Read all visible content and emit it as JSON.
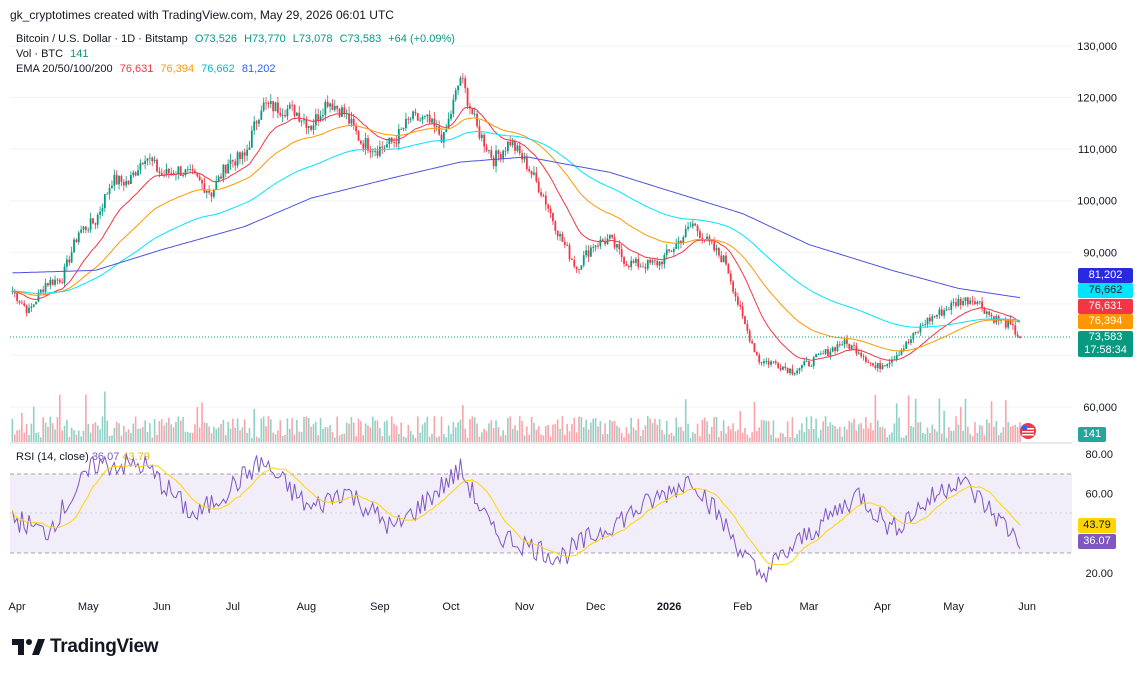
{
  "header": {
    "credit": "gk_cryptotimes created with TradingView.com, May 29, 2026 06:01 UTC"
  },
  "legend": {
    "symbol": "Bitcoin / U.S. Dollar · 1D · Bitstamp",
    "ohlc": {
      "o": "O73,526",
      "h": "H73,770",
      "l": "L73,078",
      "c": "C73,583",
      "chg": "+64 (+0.09%)"
    },
    "vol_label": "Vol · BTC",
    "vol_value": "141",
    "ema_label": "EMA 20/50/100/200",
    "ema20": "76,631",
    "ema50": "76,394",
    "ema100": "76,662",
    "ema200": "81,202"
  },
  "rsi_legend": {
    "label": "RSI (14, close)",
    "rsi": "36.07",
    "ma": "43.79"
  },
  "price_axis": [
    "130,000",
    "120,000",
    "110,000",
    "100,000",
    "90,000",
    "60,000"
  ],
  "rsi_axis": [
    "80.00",
    "60.00",
    "20.00"
  ],
  "tags": {
    "ema200": "81,202",
    "ema100": "76,662",
    "ema20": "76,631",
    "ema50": "76,394",
    "price": "73,583",
    "countdown": "17:58:34",
    "volume": "141",
    "rsi_ma": "43.79",
    "rsi": "36.07"
  },
  "time_axis": [
    "Apr",
    "May",
    "Jun",
    "Jul",
    "Aug",
    "Sep",
    "Oct",
    "Nov",
    "Dec",
    "2026",
    "Feb",
    "Mar",
    "Apr",
    "May",
    "Jun"
  ],
  "brand": {
    "name": "TradingView"
  },
  "colors": {
    "up": "#089981",
    "down": "#f23645",
    "ema20": "#f23645",
    "ema50": "#ff9800",
    "ema100": "#00e5ff",
    "ema200": "#4c52e0",
    "rsi": "#7e57c2",
    "rsi_ma": "#ffd400"
  },
  "chart_data": {
    "type": "candlestick",
    "symbol": "BTCUSD",
    "interval": "1D",
    "x_range": [
      "2025-03-29",
      "2026-05-29"
    ],
    "y_range": [
      56000,
      132000
    ],
    "close_weekly": [
      [
        "2025-03-30",
        82500
      ],
      [
        "2025-04-06",
        78500
      ],
      [
        "2025-04-13",
        84000
      ],
      [
        "2025-04-20",
        85000
      ],
      [
        "2025-04-27",
        94000
      ],
      [
        "2025-05-04",
        96000
      ],
      [
        "2025-05-11",
        104000
      ],
      [
        "2025-05-18",
        103500
      ],
      [
        "2025-05-25",
        109000
      ],
      [
        "2025-06-01",
        105000
      ],
      [
        "2025-06-08",
        106000
      ],
      [
        "2025-06-15",
        104500
      ],
      [
        "2025-06-22",
        101500
      ],
      [
        "2025-06-29",
        107500
      ],
      [
        "2025-07-06",
        108500
      ],
      [
        "2025-07-13",
        118500
      ],
      [
        "2025-07-20",
        118000
      ],
      [
        "2025-07-27",
        117500
      ],
      [
        "2025-08-03",
        114500
      ],
      [
        "2025-08-10",
        119500
      ],
      [
        "2025-08-17",
        117000
      ],
      [
        "2025-08-24",
        111500
      ],
      [
        "2025-08-31",
        110000
      ],
      [
        "2025-09-07",
        111500
      ],
      [
        "2025-09-14",
        116000
      ],
      [
        "2025-09-21",
        115500
      ],
      [
        "2025-09-28",
        112000
      ],
      [
        "2025-10-05",
        124000
      ],
      [
        "2025-10-12",
        114000
      ],
      [
        "2025-10-19",
        108000
      ],
      [
        "2025-10-26",
        111500
      ],
      [
        "2025-11-02",
        107000
      ],
      [
        "2025-11-09",
        101000
      ],
      [
        "2025-11-16",
        93000
      ],
      [
        "2025-11-23",
        87000
      ],
      [
        "2025-11-30",
        91500
      ],
      [
        "2025-12-07",
        92500
      ],
      [
        "2025-12-14",
        88000
      ],
      [
        "2025-12-21",
        87500
      ],
      [
        "2025-12-28",
        88000
      ],
      [
        "2026-01-04",
        91500
      ],
      [
        "2026-01-11",
        95500
      ],
      [
        "2026-01-18",
        91500
      ],
      [
        "2026-01-25",
        88000
      ],
      [
        "2026-02-01",
        77000
      ],
      [
        "2026-02-08",
        69000
      ],
      [
        "2026-02-15",
        68500
      ],
      [
        "2026-02-22",
        67000
      ],
      [
        "2026-03-01",
        68500
      ],
      [
        "2026-03-08",
        70500
      ],
      [
        "2026-03-15",
        72500
      ],
      [
        "2026-03-22",
        71000
      ],
      [
        "2026-03-29",
        67500
      ],
      [
        "2026-04-05",
        69500
      ],
      [
        "2026-04-12",
        72500
      ],
      [
        "2026-04-19",
        76500
      ],
      [
        "2026-04-26",
        78500
      ],
      [
        "2026-05-03",
        80500
      ],
      [
        "2026-05-10",
        81000
      ],
      [
        "2026-05-17",
        77500
      ],
      [
        "2026-05-24",
        76000
      ],
      [
        "2026-05-29",
        73583
      ]
    ],
    "ema200_weekly": [
      [
        "2025-03-30",
        86000
      ],
      [
        "2025-05-04",
        86500
      ],
      [
        "2025-06-01",
        90500
      ],
      [
        "2025-07-06",
        95000
      ],
      [
        "2025-08-03",
        100500
      ],
      [
        "2025-09-07",
        104500
      ],
      [
        "2025-10-05",
        107500
      ],
      [
        "2025-11-02",
        108500
      ],
      [
        "2025-12-07",
        105500
      ],
      [
        "2026-01-04",
        101500
      ],
      [
        "2026-02-01",
        97500
      ],
      [
        "2026-03-01",
        91500
      ],
      [
        "2026-04-05",
        86500
      ],
      [
        "2026-05-03",
        83000
      ],
      [
        "2026-05-29",
        81202
      ]
    ],
    "rsi_weekly": [
      [
        "2025-03-30",
        48
      ],
      [
        "2025-04-13",
        40
      ],
      [
        "2025-05-04",
        75
      ],
      [
        "2025-05-25",
        74
      ],
      [
        "2025-06-15",
        48
      ],
      [
        "2025-07-13",
        76
      ],
      [
        "2025-08-03",
        52
      ],
      [
        "2025-08-17",
        62
      ],
      [
        "2025-09-07",
        42
      ],
      [
        "2025-10-05",
        72
      ],
      [
        "2025-10-19",
        40
      ],
      [
        "2025-11-16",
        28
      ],
      [
        "2025-12-07",
        44
      ],
      [
        "2026-01-11",
        68
      ],
      [
        "2026-02-08",
        18
      ],
      [
        "2026-03-01",
        40
      ],
      [
        "2026-03-22",
        60
      ],
      [
        "2026-04-05",
        42
      ],
      [
        "2026-05-03",
        68
      ],
      [
        "2026-05-29",
        36.07
      ]
    ],
    "latest": {
      "close": 73583,
      "ema20": 76631,
      "ema50": 76394,
      "ema100": 76662,
      "ema200": 81202,
      "volume": 141,
      "rsi": 36.07,
      "rsi_ma": 43.79
    }
  }
}
